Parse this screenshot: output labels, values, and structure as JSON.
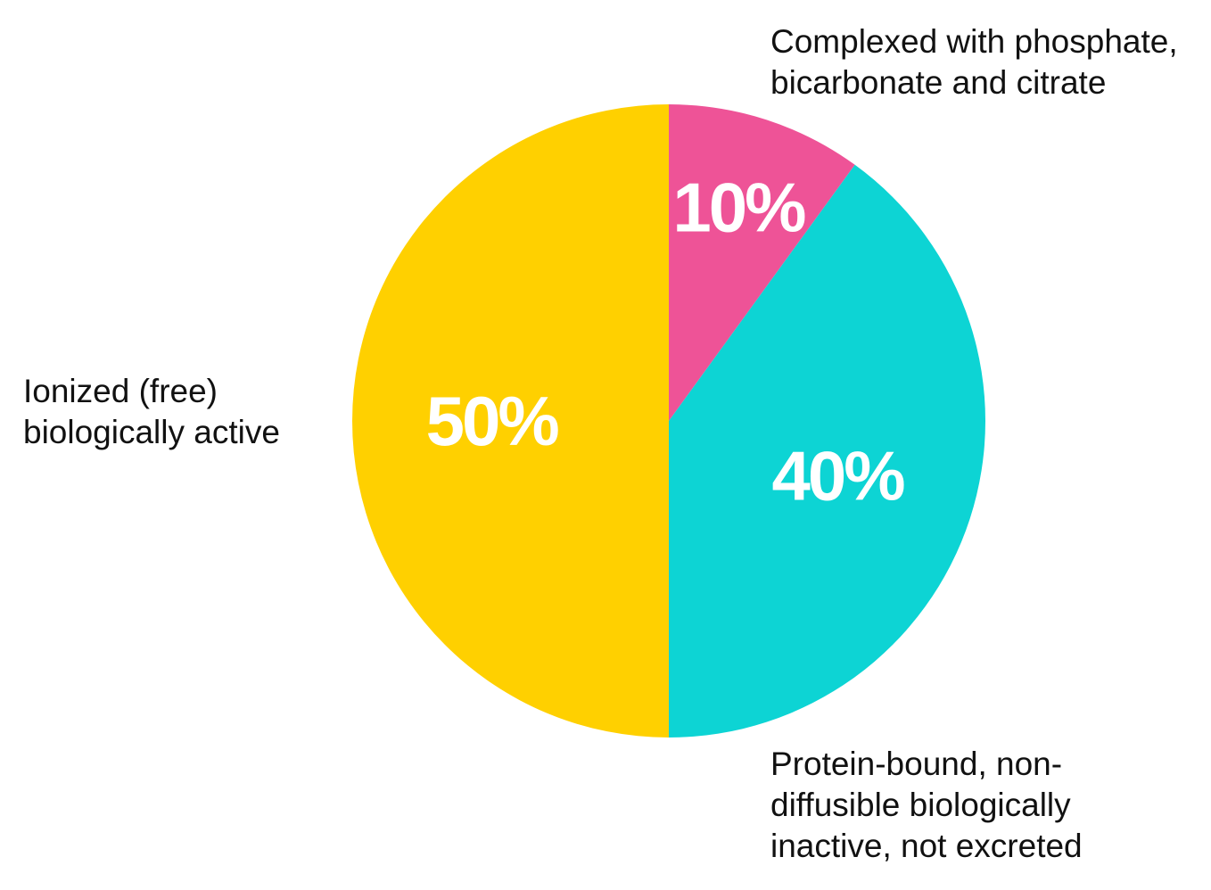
{
  "chart_data": {
    "type": "pie",
    "title": "",
    "slices": [
      {
        "name": "Complexed with phosphate,\nbicarbonate and citrate",
        "value": 10,
        "label": "10%",
        "color": "#EE5397"
      },
      {
        "name": "Protein-bound, non-\ndiffusible biologically\ninactive, not excreted",
        "value": 40,
        "label": "40%",
        "color": "#0DD4D4"
      },
      {
        "name": "Ionized (free)\nbiologically active",
        "value": 50,
        "label": "50%",
        "color": "#FFD000"
      }
    ],
    "start_angle": "12 o'clock",
    "direction": "clockwise",
    "legend": "callouts beside slices"
  }
}
